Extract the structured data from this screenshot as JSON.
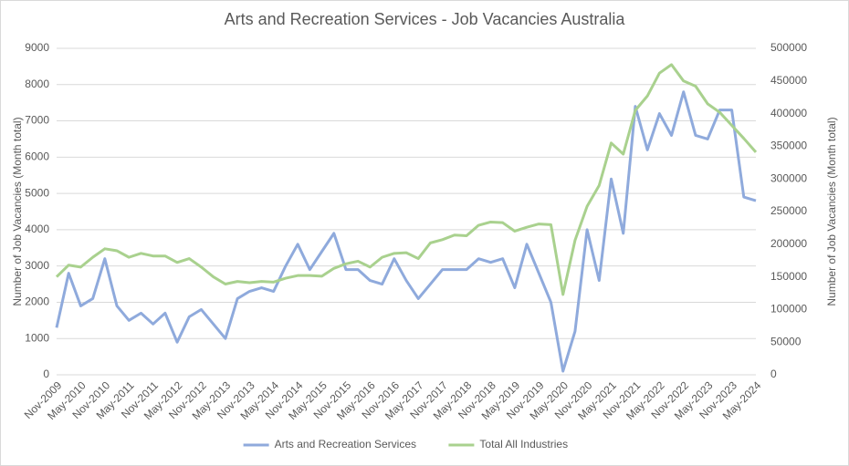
{
  "chart_data": {
    "type": "line",
    "title": "Arts and Recreation Services - Job Vacancies Australia",
    "y_label": "Number of Job Vacancies (Month total)",
    "y2_label": "Number of Job Vacancies (Month total)",
    "categories": [
      "Nov-2009",
      null,
      "May-2010",
      null,
      "Nov-2010",
      null,
      "May-2011",
      null,
      "Nov-2011",
      null,
      "May-2012",
      null,
      "Nov-2012",
      null,
      "May-2013",
      null,
      "Nov-2013",
      null,
      "May-2014",
      null,
      "Nov-2014",
      null,
      "May-2015",
      null,
      "Nov-2015",
      null,
      "May-2016",
      null,
      "Nov-2016",
      null,
      "May-2017",
      null,
      "Nov-2017",
      null,
      "May-2018",
      null,
      "Nov-2018",
      null,
      "May-2019",
      null,
      "Nov-2019",
      null,
      "May-2020",
      null,
      "Nov-2020",
      null,
      "May-2021",
      null,
      "Nov-2021",
      null,
      "May-2022",
      null,
      "Nov-2022",
      null,
      "May-2023",
      null,
      "Nov-2023",
      null,
      "May-2024"
    ],
    "series": [
      {
        "name": "Arts and Recreation Services",
        "color": "#8faadc",
        "values": [
          1300,
          2800,
          1900,
          2100,
          3200,
          1900,
          1500,
          1700,
          1400,
          1700,
          900,
          1600,
          1800,
          1400,
          1000,
          2100,
          2300,
          2400,
          2300,
          3000,
          3600,
          2900,
          3400,
          3900,
          2900,
          2900,
          2600,
          2500,
          3200,
          2600,
          2100,
          2500,
          2900,
          2900,
          2900,
          3200,
          3100,
          3200,
          2400,
          3600,
          2800,
          2000,
          100,
          1200,
          4000,
          2600,
          5400,
          3900,
          7400,
          6200,
          7200,
          6600,
          7800,
          6600,
          6500,
          7300,
          7300,
          4900,
          4800
        ]
      },
      {
        "name": "Total All Industries",
        "color": "#a9d18e",
        "axis": "y2",
        "values": [
          150000,
          168000,
          165000,
          180000,
          193000,
          190000,
          180000,
          186000,
          182000,
          182000,
          172000,
          178000,
          165000,
          150000,
          139000,
          143000,
          141000,
          143000,
          142000,
          148000,
          152000,
          152000,
          151000,
          163000,
          170000,
          174000,
          165000,
          180000,
          186000,
          187000,
          178000,
          202000,
          207000,
          214000,
          213000,
          229000,
          234000,
          233000,
          220000,
          226000,
          231000,
          230000,
          123000,
          206000,
          258000,
          290000,
          355000,
          338000,
          405000,
          427000,
          462000,
          475000,
          450000,
          442000,
          415000,
          402000,
          382000,
          362000,
          341000
        ]
      }
    ],
    "ylim": [
      0,
      9000
    ],
    "yticks": [
      0,
      1000,
      2000,
      3000,
      4000,
      5000,
      6000,
      7000,
      8000,
      9000
    ],
    "y2lim": [
      0,
      500000
    ],
    "y2ticks": [
      0,
      50000,
      100000,
      150000,
      200000,
      250000,
      300000,
      350000,
      400000,
      450000,
      500000
    ],
    "grid": true,
    "legend": "bottom"
  }
}
